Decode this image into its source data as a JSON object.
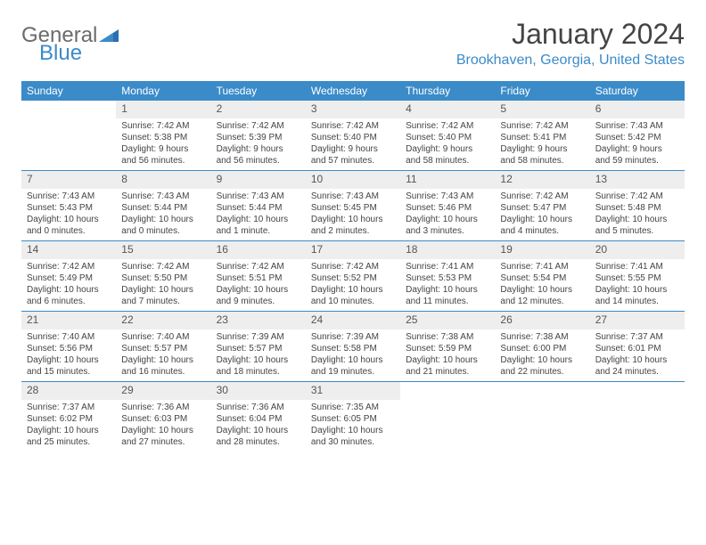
{
  "logo": {
    "text1": "General",
    "text2": "Blue"
  },
  "title": "January 2024",
  "location": "Brookhaven, Georgia, United States",
  "colors": {
    "header_bg": "#3b8bc9",
    "header_text": "#ffffff",
    "daynum_bg": "#eeeeee",
    "border": "#3b8bc9",
    "logo_gray": "#6b6b6b",
    "logo_blue": "#3b8bc9"
  },
  "dayNames": [
    "Sunday",
    "Monday",
    "Tuesday",
    "Wednesday",
    "Thursday",
    "Friday",
    "Saturday"
  ],
  "weeks": [
    [
      {
        "day": "",
        "sunrise": "",
        "sunset": "",
        "daylight": ""
      },
      {
        "day": "1",
        "sunrise": "Sunrise: 7:42 AM",
        "sunset": "Sunset: 5:38 PM",
        "daylight": "Daylight: 9 hours and 56 minutes."
      },
      {
        "day": "2",
        "sunrise": "Sunrise: 7:42 AM",
        "sunset": "Sunset: 5:39 PM",
        "daylight": "Daylight: 9 hours and 56 minutes."
      },
      {
        "day": "3",
        "sunrise": "Sunrise: 7:42 AM",
        "sunset": "Sunset: 5:40 PM",
        "daylight": "Daylight: 9 hours and 57 minutes."
      },
      {
        "day": "4",
        "sunrise": "Sunrise: 7:42 AM",
        "sunset": "Sunset: 5:40 PM",
        "daylight": "Daylight: 9 hours and 58 minutes."
      },
      {
        "day": "5",
        "sunrise": "Sunrise: 7:42 AM",
        "sunset": "Sunset: 5:41 PM",
        "daylight": "Daylight: 9 hours and 58 minutes."
      },
      {
        "day": "6",
        "sunrise": "Sunrise: 7:43 AM",
        "sunset": "Sunset: 5:42 PM",
        "daylight": "Daylight: 9 hours and 59 minutes."
      }
    ],
    [
      {
        "day": "7",
        "sunrise": "Sunrise: 7:43 AM",
        "sunset": "Sunset: 5:43 PM",
        "daylight": "Daylight: 10 hours and 0 minutes."
      },
      {
        "day": "8",
        "sunrise": "Sunrise: 7:43 AM",
        "sunset": "Sunset: 5:44 PM",
        "daylight": "Daylight: 10 hours and 0 minutes."
      },
      {
        "day": "9",
        "sunrise": "Sunrise: 7:43 AM",
        "sunset": "Sunset: 5:44 PM",
        "daylight": "Daylight: 10 hours and 1 minute."
      },
      {
        "day": "10",
        "sunrise": "Sunrise: 7:43 AM",
        "sunset": "Sunset: 5:45 PM",
        "daylight": "Daylight: 10 hours and 2 minutes."
      },
      {
        "day": "11",
        "sunrise": "Sunrise: 7:43 AM",
        "sunset": "Sunset: 5:46 PM",
        "daylight": "Daylight: 10 hours and 3 minutes."
      },
      {
        "day": "12",
        "sunrise": "Sunrise: 7:42 AM",
        "sunset": "Sunset: 5:47 PM",
        "daylight": "Daylight: 10 hours and 4 minutes."
      },
      {
        "day": "13",
        "sunrise": "Sunrise: 7:42 AM",
        "sunset": "Sunset: 5:48 PM",
        "daylight": "Daylight: 10 hours and 5 minutes."
      }
    ],
    [
      {
        "day": "14",
        "sunrise": "Sunrise: 7:42 AM",
        "sunset": "Sunset: 5:49 PM",
        "daylight": "Daylight: 10 hours and 6 minutes."
      },
      {
        "day": "15",
        "sunrise": "Sunrise: 7:42 AM",
        "sunset": "Sunset: 5:50 PM",
        "daylight": "Daylight: 10 hours and 7 minutes."
      },
      {
        "day": "16",
        "sunrise": "Sunrise: 7:42 AM",
        "sunset": "Sunset: 5:51 PM",
        "daylight": "Daylight: 10 hours and 9 minutes."
      },
      {
        "day": "17",
        "sunrise": "Sunrise: 7:42 AM",
        "sunset": "Sunset: 5:52 PM",
        "daylight": "Daylight: 10 hours and 10 minutes."
      },
      {
        "day": "18",
        "sunrise": "Sunrise: 7:41 AM",
        "sunset": "Sunset: 5:53 PM",
        "daylight": "Daylight: 10 hours and 11 minutes."
      },
      {
        "day": "19",
        "sunrise": "Sunrise: 7:41 AM",
        "sunset": "Sunset: 5:54 PM",
        "daylight": "Daylight: 10 hours and 12 minutes."
      },
      {
        "day": "20",
        "sunrise": "Sunrise: 7:41 AM",
        "sunset": "Sunset: 5:55 PM",
        "daylight": "Daylight: 10 hours and 14 minutes."
      }
    ],
    [
      {
        "day": "21",
        "sunrise": "Sunrise: 7:40 AM",
        "sunset": "Sunset: 5:56 PM",
        "daylight": "Daylight: 10 hours and 15 minutes."
      },
      {
        "day": "22",
        "sunrise": "Sunrise: 7:40 AM",
        "sunset": "Sunset: 5:57 PM",
        "daylight": "Daylight: 10 hours and 16 minutes."
      },
      {
        "day": "23",
        "sunrise": "Sunrise: 7:39 AM",
        "sunset": "Sunset: 5:57 PM",
        "daylight": "Daylight: 10 hours and 18 minutes."
      },
      {
        "day": "24",
        "sunrise": "Sunrise: 7:39 AM",
        "sunset": "Sunset: 5:58 PM",
        "daylight": "Daylight: 10 hours and 19 minutes."
      },
      {
        "day": "25",
        "sunrise": "Sunrise: 7:38 AM",
        "sunset": "Sunset: 5:59 PM",
        "daylight": "Daylight: 10 hours and 21 minutes."
      },
      {
        "day": "26",
        "sunrise": "Sunrise: 7:38 AM",
        "sunset": "Sunset: 6:00 PM",
        "daylight": "Daylight: 10 hours and 22 minutes."
      },
      {
        "day": "27",
        "sunrise": "Sunrise: 7:37 AM",
        "sunset": "Sunset: 6:01 PM",
        "daylight": "Daylight: 10 hours and 24 minutes."
      }
    ],
    [
      {
        "day": "28",
        "sunrise": "Sunrise: 7:37 AM",
        "sunset": "Sunset: 6:02 PM",
        "daylight": "Daylight: 10 hours and 25 minutes."
      },
      {
        "day": "29",
        "sunrise": "Sunrise: 7:36 AM",
        "sunset": "Sunset: 6:03 PM",
        "daylight": "Daylight: 10 hours and 27 minutes."
      },
      {
        "day": "30",
        "sunrise": "Sunrise: 7:36 AM",
        "sunset": "Sunset: 6:04 PM",
        "daylight": "Daylight: 10 hours and 28 minutes."
      },
      {
        "day": "31",
        "sunrise": "Sunrise: 7:35 AM",
        "sunset": "Sunset: 6:05 PM",
        "daylight": "Daylight: 10 hours and 30 minutes."
      },
      {
        "day": "",
        "sunrise": "",
        "sunset": "",
        "daylight": ""
      },
      {
        "day": "",
        "sunrise": "",
        "sunset": "",
        "daylight": ""
      },
      {
        "day": "",
        "sunrise": "",
        "sunset": "",
        "daylight": ""
      }
    ]
  ]
}
